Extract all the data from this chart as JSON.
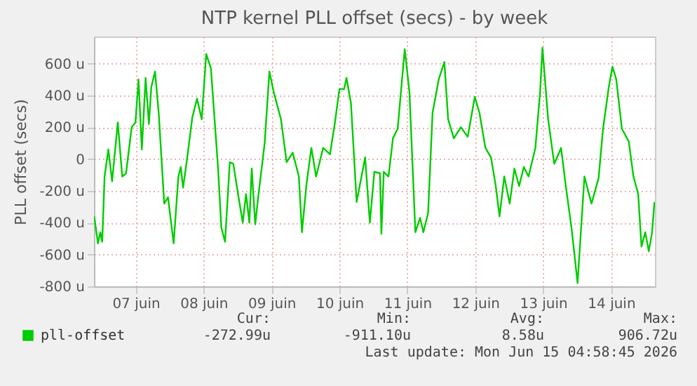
{
  "chart_data": {
    "type": "line",
    "title": "NTP kernel PLL offset (secs) - by week",
    "ylabel": "PLL offset (secs)",
    "xlim": [
      "2026-06-06T21:15",
      "2026-06-15T03:30"
    ],
    "xticks": [
      {
        "value": "2026-06-07T12:00",
        "label": "07 juin"
      },
      {
        "value": "2026-06-08T12:00",
        "label": "08 juin"
      },
      {
        "value": "2026-06-09T12:00",
        "label": "09 juin"
      },
      {
        "value": "2026-06-10T12:00",
        "label": "10 juin"
      },
      {
        "value": "2026-06-11T12:00",
        "label": "11 juin"
      },
      {
        "value": "2026-06-12T12:00",
        "label": "12 juin"
      },
      {
        "value": "2026-06-13T12:00",
        "label": "13 juin"
      },
      {
        "value": "2026-06-14T12:00",
        "label": "14 juin"
      }
    ],
    "ylim": [
      -800,
      770
    ],
    "yticks": [
      {
        "value": -800,
        "label": "-800 u"
      },
      {
        "value": -600,
        "label": "-600 u"
      },
      {
        "value": -400,
        "label": "-400 u"
      },
      {
        "value": -200,
        "label": "-200 u"
      },
      {
        "value": 0,
        "label": "0"
      },
      {
        "value": 200,
        "label": "200 u"
      },
      {
        "value": 400,
        "label": "400 u"
      },
      {
        "value": 600,
        "label": "600 u"
      }
    ],
    "grid": true,
    "legend": "bottom left",
    "marker": "none",
    "line_style": "solid",
    "annotations": [
      "Cur:",
      "Min:",
      "Avg:",
      "Max:",
      "-272.99u",
      "-911.10u",
      "8.58u",
      "906.72u",
      "Last update: Mon Jun 15 04:58:45 2026"
    ],
    "series": [
      {
        "name": "pll-offset",
        "color": "#00cc00",
        "x": [
          "2026-06-06T21:20",
          "2026-06-06T22:40",
          "2026-06-06T23:30",
          "2026-06-07T00:10",
          "2026-06-07T01:00",
          "2026-06-07T02:20",
          "2026-06-07T03:40",
          "2026-06-07T05:40",
          "2026-06-07T07:15",
          "2026-06-07T08:35",
          "2026-06-07T10:35",
          "2026-06-07T11:55",
          "2026-06-07T13:00",
          "2026-06-07T14:10",
          "2026-06-07T15:30",
          "2026-06-07T16:40",
          "2026-06-07T17:30",
          "2026-06-07T18:50",
          "2026-06-07T20:10",
          "2026-06-07T22:05",
          "2026-06-07T23:25",
          "2026-06-08T01:25",
          "2026-06-08T03:05",
          "2026-06-08T03:55",
          "2026-06-08T04:45",
          "2026-06-08T06:00",
          "2026-06-08T08:00",
          "2026-06-08T09:40",
          "2026-06-08T11:20",
          "2026-06-08T12:55",
          "2026-06-08T14:35",
          "2026-06-08T17:05",
          "2026-06-08T18:15",
          "2026-06-08T19:35",
          "2026-06-08T21:15",
          "2026-06-08T22:30",
          "2026-06-09T00:10",
          "2026-06-09T01:50",
          "2026-06-09T03:00",
          "2026-06-09T04:10",
          "2026-06-09T05:00",
          "2026-06-09T06:15",
          "2026-06-09T07:25",
          "2026-06-09T09:35",
          "2026-06-09T11:15",
          "2026-06-09T12:55",
          "2026-06-09T15:20",
          "2026-06-09T17:20",
          "2026-06-09T19:30",
          "2026-06-09T21:40",
          "2026-06-09T22:45",
          "2026-06-10T00:25",
          "2026-06-10T02:05",
          "2026-06-10T03:45",
          "2026-06-10T06:15",
          "2026-06-10T08:40",
          "2026-06-10T10:20",
          "2026-06-10T12:00",
          "2026-06-10T13:40",
          "2026-06-10T14:30",
          "2026-06-10T16:05",
          "2026-06-10T18:05",
          "2026-06-10T21:05",
          "2026-06-10T22:45",
          "2026-06-11T00:20",
          "2026-06-11T02:20",
          "2026-06-11T02:50",
          "2026-06-11T03:40",
          "2026-06-11T05:20",
          "2026-06-11T06:55",
          "2026-06-11T08:35",
          "2026-06-11T11:05",
          "2026-06-11T12:45",
          "2026-06-11T14:50",
          "2026-06-11T16:30",
          "2026-06-11T17:40",
          "2026-06-11T19:20",
          "2026-06-11T20:55",
          "2026-06-11T23:05",
          "2026-06-12T01:05",
          "2026-06-12T02:25",
          "2026-06-12T04:25",
          "2026-06-12T06:55",
          "2026-06-12T09:20",
          "2026-06-12T11:50",
          "2026-06-12T13:30",
          "2026-06-12T15:35",
          "2026-06-12T17:35",
          "2026-06-12T19:15",
          "2026-06-12T20:35",
          "2026-06-12T22:15",
          "2026-06-13T00:10",
          "2026-06-13T01:50",
          "2026-06-13T03:30",
          "2026-06-13T05:10",
          "2026-06-13T06:50",
          "2026-06-13T09:15",
          "2026-06-13T10:55",
          "2026-06-13T11:45",
          "2026-06-13T13:45",
          "2026-06-13T15:55",
          "2026-06-13T18:20",
          "2026-06-13T20:00",
          "2026-06-13T22:00",
          "2026-06-14T00:10",
          "2026-06-14T02:35",
          "2026-06-14T05:05",
          "2026-06-14T07:35",
          "2026-06-14T09:10",
          "2026-06-14T11:10",
          "2026-06-14T12:30",
          "2026-06-14T13:50",
          "2026-06-14T15:50",
          "2026-06-14T18:15",
          "2026-06-14T19:55",
          "2026-06-14T21:35",
          "2026-06-14T22:45",
          "2026-06-15T00:05",
          "2026-06-15T01:20",
          "2026-06-15T02:30",
          "2026-06-15T03:20"
        ],
        "values": [
          -360,
          -530,
          -460,
          -520,
          -110,
          60,
          -140,
          230,
          -110,
          -90,
          200,
          230,
          500,
          60,
          510,
          220,
          450,
          550,
          280,
          -280,
          -240,
          -530,
          -110,
          -50,
          -180,
          -20,
          260,
          380,
          250,
          660,
          570,
          -50,
          -430,
          -520,
          -20,
          -30,
          -220,
          -400,
          -220,
          -400,
          -60,
          -410,
          -220,
          100,
          550,
          410,
          250,
          -20,
          40,
          -110,
          -460,
          -150,
          70,
          -110,
          70,
          30,
          220,
          440,
          440,
          510,
          350,
          -270,
          10,
          -400,
          -80,
          -90,
          -470,
          -80,
          -110,
          130,
          190,
          690,
          420,
          -460,
          -370,
          -460,
          -340,
          290,
          500,
          610,
          250,
          130,
          200,
          140,
          390,
          290,
          70,
          10,
          -170,
          -360,
          -110,
          -280,
          -60,
          -170,
          -50,
          -110,
          70,
          420,
          700,
          250,
          -30,
          70,
          -170,
          -430,
          -780,
          -110,
          -280,
          -120,
          190,
          450,
          580,
          500,
          190,
          110,
          -110,
          -220,
          -550,
          -460,
          -580,
          -460,
          -270
        ]
      }
    ]
  }
}
